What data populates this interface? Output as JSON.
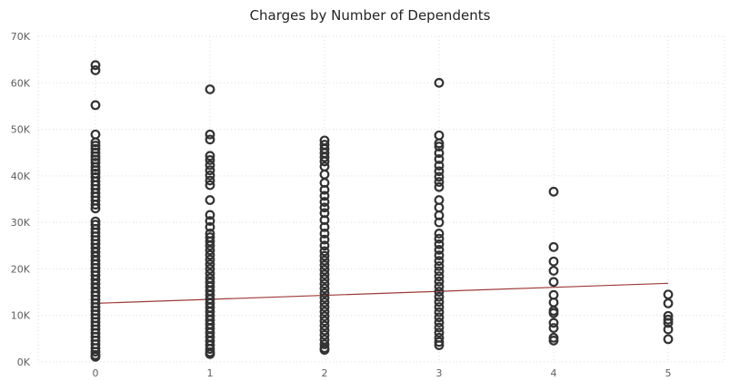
{
  "chart_data": {
    "type": "scatter",
    "title": "Charges by Number of Dependents",
    "xlabel": "",
    "ylabel": "",
    "x_ticks": [
      "0",
      "1",
      "2",
      "3",
      "4",
      "5"
    ],
    "y_ticks": [
      "0K",
      "10K",
      "20K",
      "30K",
      "40K",
      "50K",
      "60K",
      "70K"
    ],
    "xlim": [
      0,
      5
    ],
    "ylim": [
      0,
      70000
    ],
    "grid": true,
    "legend": "none",
    "point_color": "#333333",
    "trendline_color": "#9e3a3a",
    "trendline": {
      "x": [
        0,
        5
      ],
      "y": [
        12600,
        16900
      ]
    },
    "series": [
      {
        "x": 0,
        "values": [
          63800,
          62700,
          55200,
          48900,
          47200,
          46500,
          45800,
          45000,
          44200,
          43500,
          42800,
          41900,
          41200,
          40500,
          39700,
          38800,
          38000,
          37200,
          36300,
          35500,
          34700,
          33800,
          33000,
          30200,
          29500,
          28600,
          27800,
          27000,
          26200,
          25400,
          24500,
          23600,
          22700,
          21800,
          21000,
          20200,
          19400,
          18600,
          17700,
          16800,
          15900,
          15000,
          14200,
          13400,
          12600,
          11800,
          11000,
          10200,
          9400,
          8600,
          7800,
          7000,
          6200,
          5400,
          4600,
          3800,
          3000,
          2200,
          1500,
          1100
        ]
      },
      {
        "x": 1,
        "values": [
          58600,
          48900,
          47800,
          44300,
          43400,
          42300,
          41200,
          40100,
          39000,
          38000,
          34800,
          31600,
          30300,
          29000,
          27600,
          26800,
          25900,
          25000,
          24000,
          23000,
          22000,
          21000,
          20000,
          19000,
          18000,
          17100,
          16200,
          15300,
          14400,
          13500,
          12600,
          11700,
          10800,
          9900,
          9000,
          8100,
          7200,
          6300,
          5400,
          4500,
          3600,
          2800,
          2100,
          1700
        ]
      },
      {
        "x": 2,
        "values": [
          47600,
          46700,
          45800,
          44900,
          44000,
          43100,
          42000,
          40300,
          38500,
          37000,
          35700,
          34400,
          33200,
          32000,
          30500,
          29000,
          27600,
          26300,
          25000,
          23800,
          22800,
          21800,
          20800,
          19800,
          18800,
          17800,
          16800,
          15800,
          14800,
          13800,
          12800,
          11800,
          10800,
          9800,
          8800,
          7800,
          6800,
          5800,
          4800,
          3800,
          3000,
          2600
        ]
      },
      {
        "x": 3,
        "values": [
          60000,
          48700,
          47000,
          46300,
          44900,
          43600,
          42200,
          41000,
          39800,
          38700,
          37600,
          34800,
          33200,
          31500,
          30000,
          27600,
          26500,
          25300,
          24100,
          22900,
          21700,
          20600,
          19500,
          18400,
          17300,
          16200,
          15100,
          14000,
          12900,
          11800,
          10700,
          9600,
          8500,
          7400,
          6300,
          5200,
          4300,
          3600
        ]
      },
      {
        "x": 4,
        "values": [
          36600,
          24700,
          21600,
          19600,
          17200,
          14400,
          12800,
          11000,
          10500,
          8400,
          7300,
          5200,
          4600
        ]
      },
      {
        "x": 5,
        "values": [
          14500,
          12600,
          9900,
          9100,
          8400,
          7000,
          4900
        ]
      }
    ]
  }
}
